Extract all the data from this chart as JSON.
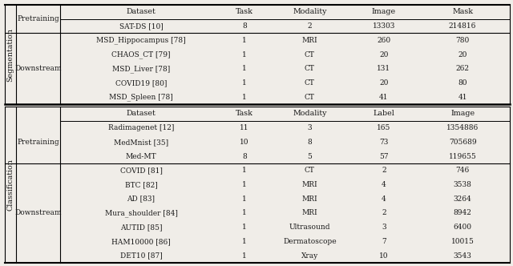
{
  "seg_header": [
    "Dataset",
    "Task",
    "Modality",
    "Image",
    "Mask"
  ],
  "seg_pretraining_label": "Pretraining",
  "seg_pretraining": [
    [
      "SAT-DS [10]",
      "8",
      "2",
      "13303",
      "214816"
    ]
  ],
  "seg_downstream_label": "Downstream",
  "seg_downstream": [
    [
      "MSD_Hippocampus [78]",
      "1",
      "MRI",
      "260",
      "780"
    ],
    [
      "CHAOS_CT [79]",
      "1",
      "CT",
      "20",
      "20"
    ],
    [
      "MSD_Liver [78]",
      "1",
      "CT",
      "131",
      "262"
    ],
    [
      "COVID19 [80]",
      "1",
      "CT",
      "20",
      "80"
    ],
    [
      "MSD_Spleen [78]",
      "1",
      "CT",
      "41",
      "41"
    ]
  ],
  "cls_header": [
    "Dataset",
    "Task",
    "Modality",
    "Label",
    "Image"
  ],
  "cls_pretraining_label": "Pretraining",
  "cls_pretraining": [
    [
      "Radimagenet [12]",
      "11",
      "3",
      "165",
      "1354886"
    ],
    [
      "MedMnist [35]",
      "10",
      "8",
      "73",
      "705689"
    ],
    [
      "Med-MT",
      "8",
      "5",
      "57",
      "119655"
    ]
  ],
  "cls_downstream_label": "Downstream",
  "cls_downstream": [
    [
      "COVID [81]",
      "1",
      "CT",
      "2",
      "746"
    ],
    [
      "BTC [82]",
      "1",
      "MRI",
      "4",
      "3538"
    ],
    [
      "AD [83]",
      "1",
      "MRI",
      "4",
      "3264"
    ],
    [
      "Mura_shoulder [84]",
      "1",
      "MRI",
      "2",
      "8942"
    ],
    [
      "AUTID [85]",
      "1",
      "Ultrasound",
      "3",
      "6400"
    ],
    [
      "HAM10000 [86]",
      "1",
      "Dermatoscope",
      "7",
      "10015"
    ],
    [
      "DET10 [87]",
      "1",
      "Xray",
      "10",
      "3543"
    ]
  ],
  "seg_label": "Segmentation",
  "cls_label": "Classification",
  "bg_color": "#f0ede8",
  "text_color": "#1a1a1a",
  "font_size": 6.5,
  "header_font_size": 6.8
}
